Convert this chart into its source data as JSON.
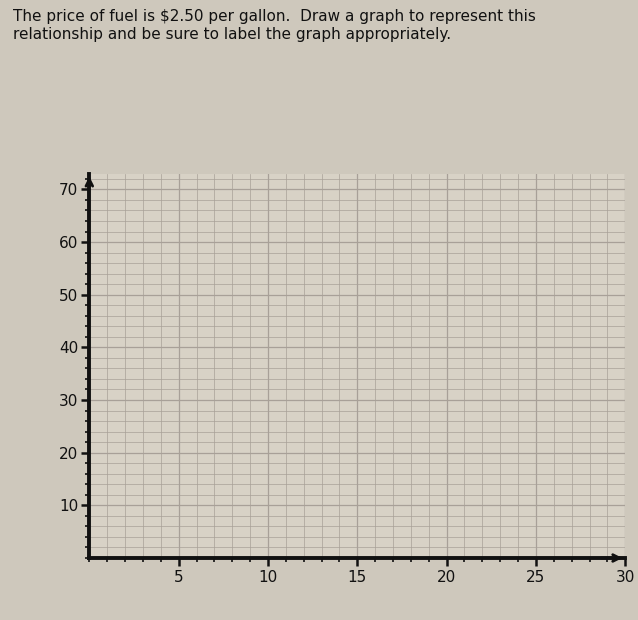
{
  "title_text": "The price of fuel is $2.50 per gallon.  Draw a graph to represent this\nrelationship and be sure to label the graph appropriately.",
  "title_fontsize": 11,
  "background_color": "#cec8bc",
  "plot_bg_color": "#d8d2c6",
  "grid_color": "#a8a098",
  "axis_color": "#111111",
  "tick_color": "#111111",
  "label_color": "#111111",
  "x_ticks": [
    5,
    10,
    15,
    20,
    25,
    30
  ],
  "y_ticks": [
    10,
    20,
    30,
    40,
    50,
    60,
    70
  ],
  "xlim": [
    0,
    30
  ],
  "ylim": [
    0,
    73
  ],
  "x_minor_every": 1,
  "y_minor_every": 2,
  "price_per_gallon": 2.5
}
